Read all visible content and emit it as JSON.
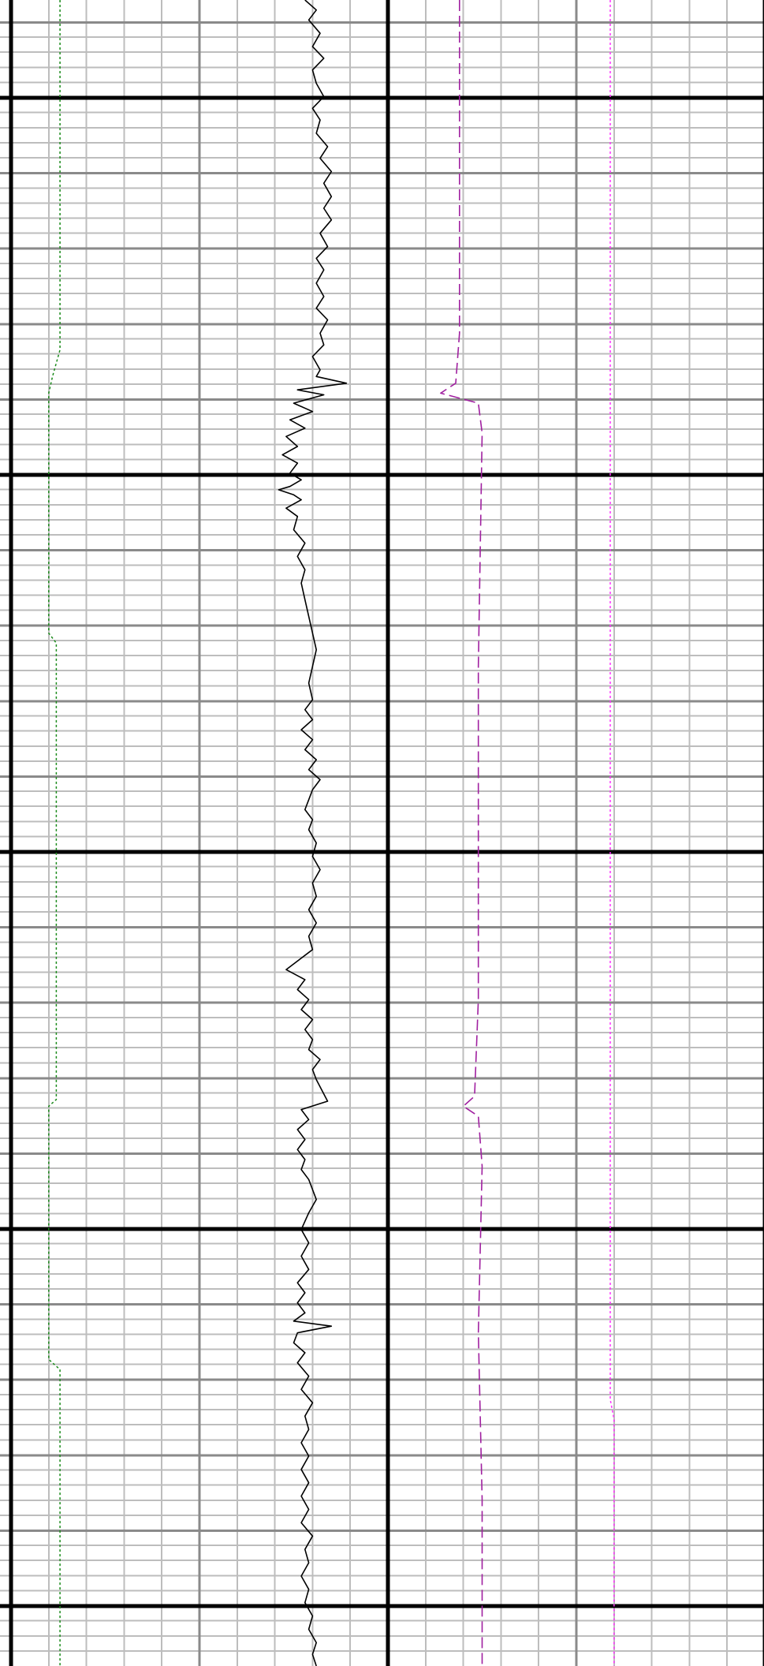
{
  "chart_data": {
    "type": "line",
    "title": "",
    "xlabel": "",
    "ylabel": "",
    "grid": true,
    "legend": "none",
    "tracks": 2,
    "track_divisions": 10,
    "depth_range": [
      0,
      1
    ],
    "colors": {
      "grid_minor": "#bdbdbd",
      "grid_mid": "#8a8a8a",
      "grid_major": "#000000",
      "black_curve": "#000000",
      "green_curve": "#1a8a1a",
      "purple_curve": "#a020a0",
      "magenta_curve": "#ff30ff"
    },
    "series": [
      {
        "key": "black-curve",
        "track": 1,
        "line_style": "solid",
        "color": "#000000",
        "points": [
          [
            7.8,
            0.0
          ],
          [
            8.1,
            0.006
          ],
          [
            7.9,
            0.012
          ],
          [
            8.2,
            0.02
          ],
          [
            8.0,
            0.028
          ],
          [
            8.3,
            0.035
          ],
          [
            8.0,
            0.042
          ],
          [
            8.1,
            0.05
          ],
          [
            8.3,
            0.058
          ],
          [
            8.0,
            0.065
          ],
          [
            8.2,
            0.072
          ],
          [
            8.1,
            0.08
          ],
          [
            8.4,
            0.088
          ],
          [
            8.2,
            0.095
          ],
          [
            8.5,
            0.103
          ],
          [
            8.3,
            0.11
          ],
          [
            8.5,
            0.118
          ],
          [
            8.3,
            0.125
          ],
          [
            8.5,
            0.132
          ],
          [
            8.2,
            0.14
          ],
          [
            8.4,
            0.148
          ],
          [
            8.1,
            0.155
          ],
          [
            8.3,
            0.162
          ],
          [
            8.1,
            0.17
          ],
          [
            8.3,
            0.178
          ],
          [
            8.1,
            0.185
          ],
          [
            8.4,
            0.192
          ],
          [
            8.2,
            0.2
          ],
          [
            8.3,
            0.207
          ],
          [
            8.0,
            0.214
          ],
          [
            8.2,
            0.222
          ],
          [
            8.1,
            0.226
          ],
          [
            8.9,
            0.23
          ],
          [
            7.6,
            0.234
          ],
          [
            8.3,
            0.237
          ],
          [
            7.5,
            0.242
          ],
          [
            8.0,
            0.247
          ],
          [
            7.4,
            0.252
          ],
          [
            7.8,
            0.257
          ],
          [
            7.3,
            0.262
          ],
          [
            7.6,
            0.268
          ],
          [
            7.2,
            0.273
          ],
          [
            7.6,
            0.278
          ],
          [
            7.4,
            0.284
          ],
          [
            7.7,
            0.288
          ],
          [
            7.4,
            0.292
          ],
          [
            7.1,
            0.294
          ],
          [
            7.5,
            0.297
          ],
          [
            7.7,
            0.3
          ],
          [
            7.3,
            0.305
          ],
          [
            7.6,
            0.31
          ],
          [
            7.5,
            0.318
          ],
          [
            7.8,
            0.326
          ],
          [
            7.6,
            0.334
          ],
          [
            7.8,
            0.342
          ],
          [
            7.7,
            0.35
          ],
          [
            7.8,
            0.36
          ],
          [
            7.9,
            0.37
          ],
          [
            8.0,
            0.38
          ],
          [
            8.1,
            0.39
          ],
          [
            8.0,
            0.4
          ],
          [
            7.9,
            0.41
          ],
          [
            8.0,
            0.42
          ],
          [
            7.8,
            0.426
          ],
          [
            8.0,
            0.432
          ],
          [
            7.7,
            0.438
          ],
          [
            8.0,
            0.444
          ],
          [
            7.8,
            0.45
          ],
          [
            8.1,
            0.456
          ],
          [
            7.9,
            0.462
          ],
          [
            8.2,
            0.468
          ],
          [
            8.0,
            0.474
          ],
          [
            7.9,
            0.48
          ],
          [
            7.8,
            0.486
          ],
          [
            8.0,
            0.492
          ],
          [
            7.9,
            0.498
          ],
          [
            8.1,
            0.506
          ],
          [
            8.0,
            0.514
          ],
          [
            8.2,
            0.522
          ],
          [
            8.0,
            0.53
          ],
          [
            8.1,
            0.538
          ],
          [
            7.9,
            0.546
          ],
          [
            8.1,
            0.554
          ],
          [
            7.9,
            0.562
          ],
          [
            8.0,
            0.57
          ],
          [
            7.3,
            0.582
          ],
          [
            7.8,
            0.588
          ],
          [
            7.6,
            0.594
          ],
          [
            7.9,
            0.6
          ],
          [
            7.7,
            0.606
          ],
          [
            8.0,
            0.612
          ],
          [
            7.8,
            0.618
          ],
          [
            8.0,
            0.624
          ],
          [
            7.9,
            0.63
          ],
          [
            8.2,
            0.636
          ],
          [
            8.0,
            0.642
          ],
          [
            8.1,
            0.648
          ],
          [
            8.4,
            0.661
          ],
          [
            7.7,
            0.666
          ],
          [
            7.9,
            0.672
          ],
          [
            7.6,
            0.678
          ],
          [
            7.8,
            0.684
          ],
          [
            7.6,
            0.69
          ],
          [
            7.8,
            0.696
          ],
          [
            7.7,
            0.702
          ],
          [
            7.9,
            0.708
          ],
          [
            8.1,
            0.72
          ],
          [
            7.9,
            0.728
          ],
          [
            7.7,
            0.738
          ],
          [
            7.9,
            0.746
          ],
          [
            7.7,
            0.754
          ],
          [
            7.9,
            0.762
          ],
          [
            7.6,
            0.77
          ],
          [
            7.8,
            0.776
          ],
          [
            7.6,
            0.782
          ],
          [
            7.8,
            0.788
          ],
          [
            7.5,
            0.793
          ],
          [
            8.5,
            0.796
          ],
          [
            7.6,
            0.8
          ],
          [
            7.5,
            0.806
          ],
          [
            7.8,
            0.812
          ],
          [
            7.6,
            0.818
          ],
          [
            7.9,
            0.826
          ],
          [
            7.7,
            0.834
          ],
          [
            8.0,
            0.842
          ],
          [
            7.8,
            0.85
          ],
          [
            7.9,
            0.858
          ],
          [
            7.7,
            0.866
          ],
          [
            7.9,
            0.874
          ],
          [
            7.7,
            0.882
          ],
          [
            7.9,
            0.89
          ],
          [
            7.7,
            0.898
          ],
          [
            7.9,
            0.906
          ],
          [
            7.7,
            0.914
          ],
          [
            8.0,
            0.922
          ],
          [
            7.8,
            0.93
          ],
          [
            7.9,
            0.938
          ],
          [
            7.7,
            0.946
          ],
          [
            7.9,
            0.954
          ],
          [
            7.8,
            0.962
          ],
          [
            8.0,
            0.97
          ],
          [
            7.9,
            0.978
          ],
          [
            8.1,
            0.986
          ],
          [
            8.0,
            0.993
          ],
          [
            8.1,
            1.0
          ]
        ]
      },
      {
        "key": "green-curve",
        "track": 1,
        "line_style": "dotted",
        "color": "#1a8a1a",
        "points": [
          [
            1.3,
            0.0
          ],
          [
            1.3,
            0.21
          ],
          [
            1.1,
            0.226
          ],
          [
            1.0,
            0.236
          ],
          [
            1.0,
            0.38
          ],
          [
            1.2,
            0.386
          ],
          [
            1.2,
            0.66
          ],
          [
            1.0,
            0.664
          ],
          [
            1.0,
            0.816
          ],
          [
            1.3,
            0.822
          ],
          [
            1.3,
            1.0
          ]
        ]
      },
      {
        "key": "purple-curve",
        "track": 2,
        "line_style": "dashed",
        "color": "#a020a0",
        "points": [
          [
            11.9,
            0.0
          ],
          [
            11.9,
            0.2
          ],
          [
            11.8,
            0.23
          ],
          [
            11.4,
            0.236
          ],
          [
            12.4,
            0.242
          ],
          [
            12.5,
            0.26
          ],
          [
            12.4,
            0.4
          ],
          [
            12.4,
            0.6
          ],
          [
            12.3,
            0.658
          ],
          [
            12.0,
            0.664
          ],
          [
            12.4,
            0.67
          ],
          [
            12.5,
            0.7
          ],
          [
            12.4,
            0.8
          ],
          [
            12.5,
            0.9
          ],
          [
            12.5,
            1.0
          ]
        ]
      },
      {
        "key": "magenta-curve",
        "track": 2,
        "line_style": "dotted",
        "color": "#ff30ff",
        "points": [
          [
            15.9,
            0.0
          ],
          [
            15.9,
            0.84
          ],
          [
            16.0,
            0.852
          ],
          [
            16.0,
            1.0
          ]
        ]
      }
    ]
  }
}
